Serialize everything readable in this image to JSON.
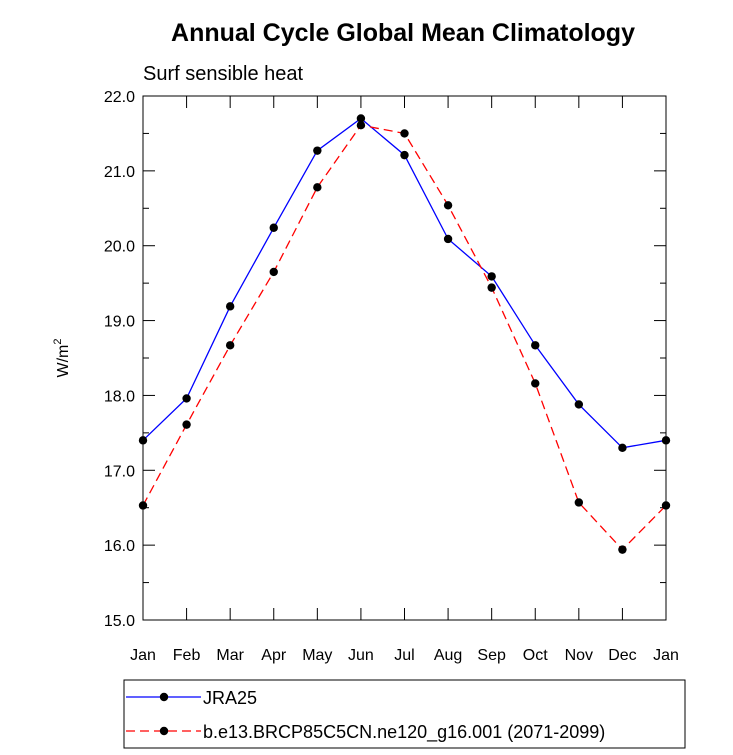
{
  "chart_data": {
    "type": "line",
    "title": "Annual Cycle Global Mean Climatology",
    "subtitle": "Surf sensible heat",
    "ylabel": "W/m",
    "ylabel_superscript": "2",
    "xlabel": "",
    "categories": [
      "Jan",
      "Feb",
      "Mar",
      "Apr",
      "May",
      "Jun",
      "Jul",
      "Aug",
      "Sep",
      "Oct",
      "Nov",
      "Dec",
      "Jan"
    ],
    "ylim": [
      15.0,
      22.0
    ],
    "yticks": [
      "15.0",
      "16.0",
      "17.0",
      "18.0",
      "19.0",
      "20.0",
      "21.0",
      "22.0"
    ],
    "series": [
      {
        "name": "JRA25",
        "color": "#0000ff",
        "dash": "solid",
        "values": [
          17.4,
          17.96,
          19.19,
          20.24,
          21.27,
          21.7,
          21.21,
          20.09,
          19.59,
          18.67,
          17.88,
          17.3,
          17.4
        ]
      },
      {
        "name": "b.e13.BRCP85C5CN.ne120_g16.001 (2071-2099)",
        "color": "#ff0000",
        "dash": "dashed",
        "values": [
          16.53,
          17.61,
          18.67,
          19.65,
          20.78,
          21.61,
          21.5,
          20.54,
          19.44,
          18.16,
          16.57,
          15.94,
          16.53
        ]
      }
    ],
    "grid": false,
    "legend_position": "bottom"
  }
}
